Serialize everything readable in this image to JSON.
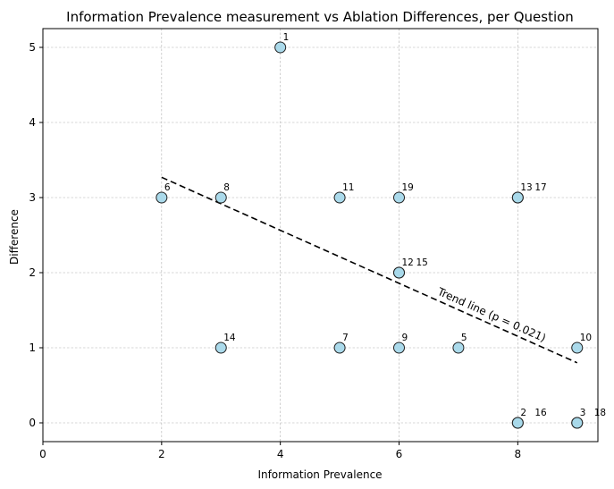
{
  "chart_data": {
    "type": "scatter",
    "title": "Information Prevalence measurement vs Ablation Differences, per Question",
    "xlabel": "Information Prevalence",
    "ylabel": "Difference",
    "xlim": [
      0,
      9.35
    ],
    "ylim": [
      -0.25,
      5.25
    ],
    "xticks": [
      0,
      2,
      4,
      6,
      8
    ],
    "yticks": [
      0,
      1,
      2,
      3,
      4,
      5
    ],
    "grid": true,
    "points": [
      {
        "label": "1",
        "x": 4,
        "y": 5
      },
      {
        "label": "2",
        "x": 8,
        "y": 0
      },
      {
        "label": "16",
        "x": 8,
        "y": 0
      },
      {
        "label": "3",
        "x": 9,
        "y": 0
      },
      {
        "label": "18",
        "x": 9,
        "y": 0
      },
      {
        "label": "5",
        "x": 7,
        "y": 1
      },
      {
        "label": "6",
        "x": 2,
        "y": 3
      },
      {
        "label": "7",
        "x": 5,
        "y": 1
      },
      {
        "label": "8",
        "x": 3,
        "y": 3
      },
      {
        "label": "9",
        "x": 6,
        "y": 1
      },
      {
        "label": "10",
        "x": 9,
        "y": 1
      },
      {
        "label": "11",
        "x": 5,
        "y": 3
      },
      {
        "label": "12",
        "x": 6,
        "y": 2
      },
      {
        "label": "15",
        "x": 6,
        "y": 2
      },
      {
        "label": "13",
        "x": 8,
        "y": 3
      },
      {
        "label": "17",
        "x": 8,
        "y": 3
      },
      {
        "label": "14",
        "x": 3,
        "y": 1
      },
      {
        "label": "19",
        "x": 6,
        "y": 3
      }
    ],
    "trend_line": {
      "label": "Trend line (p = 0.021)",
      "x": [
        2,
        9
      ],
      "y": [
        3.27,
        0.8
      ]
    },
    "colors": {
      "point_fill": "#a6d8ea",
      "point_stroke": "#222222",
      "grid": "#b0b0b0",
      "trend": "#000000"
    }
  }
}
